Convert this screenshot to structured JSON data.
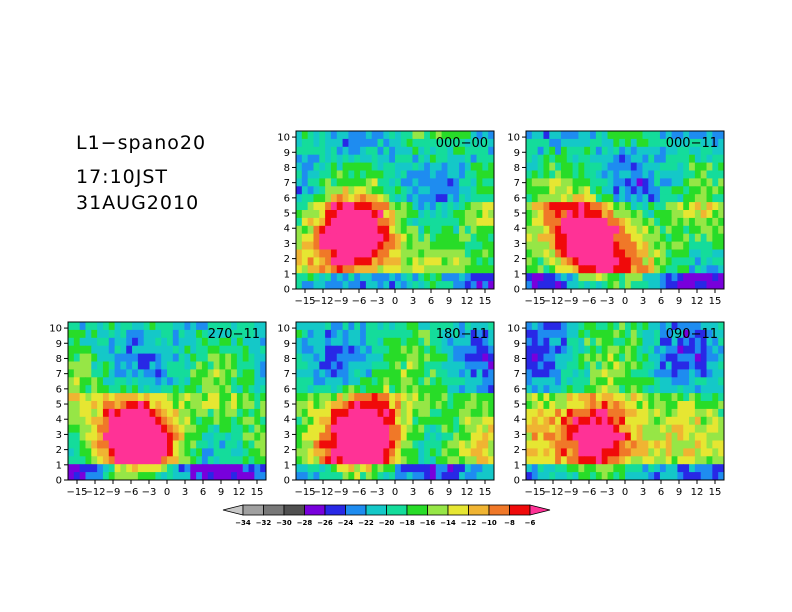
{
  "header": {
    "line1": "L1−spano20",
    "line2": "17:10JST",
    "line3": "31AUG2010"
  },
  "chart_data": {
    "type": "heatmap",
    "x_ticks": [
      "−15",
      "−12",
      "−9",
      "−6",
      "−3",
      "0",
      "3",
      "6",
      "9",
      "12",
      "15"
    ],
    "y_ticks": [
      "0",
      "1",
      "2",
      "3",
      "4",
      "5",
      "6",
      "7",
      "8",
      "9",
      "10"
    ],
    "xlim": [
      -16.5,
      16.5
    ],
    "ylim": [
      0,
      10.4
    ],
    "panels": [
      {
        "label": "000−00",
        "row": 0,
        "col": 1
      },
      {
        "label": "000−11",
        "row": 0,
        "col": 2
      },
      {
        "label": "270−11",
        "row": 1,
        "col": 0
      },
      {
        "label": "180−11",
        "row": 1,
        "col": 1
      },
      {
        "label": "090−11",
        "row": 1,
        "col": 2
      }
    ],
    "colorbar": {
      "levels": [
        "−34",
        "−32",
        "−30",
        "−28",
        "−26",
        "−24",
        "−22",
        "−20",
        "−18",
        "−16",
        "−14",
        "−12",
        "−10",
        "−8",
        "−6"
      ],
      "colors": [
        "#c8c8c8",
        "#a0a0a0",
        "#787878",
        "#505050",
        "#7800dc",
        "#2828e6",
        "#1e8cf0",
        "#14c8c8",
        "#14dc9b",
        "#28dc28",
        "#96e646",
        "#e6e632",
        "#f0b432",
        "#f07828",
        "#f00a0a",
        "#ff3296"
      ]
    }
  }
}
